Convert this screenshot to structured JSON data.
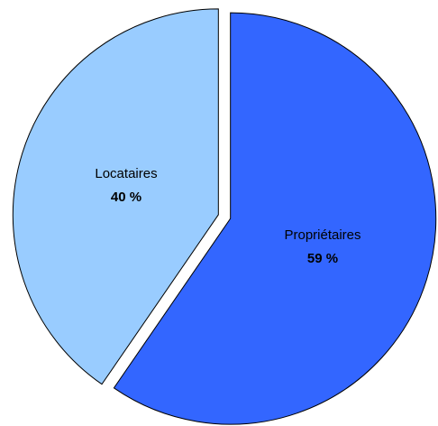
{
  "chart_data": {
    "type": "pie",
    "categories": [
      "Propriétaires",
      "Locataires"
    ],
    "values": [
      59,
      40
    ],
    "value_labels": [
      "59 %",
      "40 %"
    ],
    "colors": [
      "#3366ff",
      "#99ccff"
    ]
  }
}
